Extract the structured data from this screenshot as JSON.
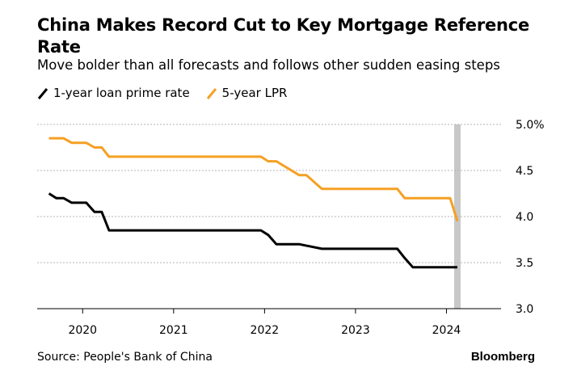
{
  "title": "China Makes Record Cut to Key Mortgage Reference Rate",
  "subtitle": "Move bolder than all forecasts and follows other sudden easing steps",
  "source": "Source: People's Bank of China",
  "brand": "Bloomberg",
  "colors": {
    "one_year": "#000000",
    "five_year": "#f5a023",
    "grid": "#b5b5b5",
    "highlight": "#c8c8c8"
  },
  "chart_data": {
    "type": "line",
    "title": "China Makes Record Cut to Key Mortgage Reference Rate",
    "subtitle": "Move bolder than all forecasts and follows other sudden easing steps",
    "xlim": [
      2019.5,
      2024.6
    ],
    "ylim": [
      3.0,
      5.0
    ],
    "y_ticks": [
      3.0,
      3.5,
      4.0,
      4.5,
      5.0
    ],
    "y_tick_labels": [
      "3.0",
      "3.5",
      "4.0",
      "4.5",
      "5.0%"
    ],
    "x_ticks": [
      2020,
      2021,
      2022,
      2023,
      2024
    ],
    "x_tick_labels": [
      "2020",
      "2021",
      "2022",
      "2023",
      "2024"
    ],
    "grid": "horizontal dashed",
    "legend": "top-left",
    "highlight_x": 2024.12,
    "series": [
      {
        "name": "1-year loan prime rate",
        "color": "#000000",
        "x": [
          2019.63,
          2019.71,
          2019.79,
          2019.88,
          2019.96,
          2020.04,
          2020.13,
          2020.21,
          2020.29,
          2021.96,
          2022.04,
          2022.13,
          2022.38,
          2022.63,
          2023.46,
          2023.54,
          2023.63,
          2024.12
        ],
        "y": [
          4.25,
          4.2,
          4.2,
          4.15,
          4.15,
          4.15,
          4.05,
          4.05,
          3.85,
          3.85,
          3.8,
          3.7,
          3.7,
          3.65,
          3.65,
          3.55,
          3.45,
          3.45
        ]
      },
      {
        "name": "5-year LPR",
        "color": "#f5a023",
        "x": [
          2019.63,
          2019.71,
          2019.79,
          2019.88,
          2019.96,
          2020.04,
          2020.13,
          2020.21,
          2020.29,
          2021.96,
          2022.04,
          2022.13,
          2022.38,
          2022.46,
          2022.63,
          2023.46,
          2023.54,
          2024.04,
          2024.12
        ],
        "y": [
          4.85,
          4.85,
          4.85,
          4.8,
          4.8,
          4.8,
          4.75,
          4.75,
          4.65,
          4.65,
          4.6,
          4.6,
          4.45,
          4.45,
          4.3,
          4.3,
          4.2,
          4.2,
          3.95
        ]
      }
    ]
  }
}
